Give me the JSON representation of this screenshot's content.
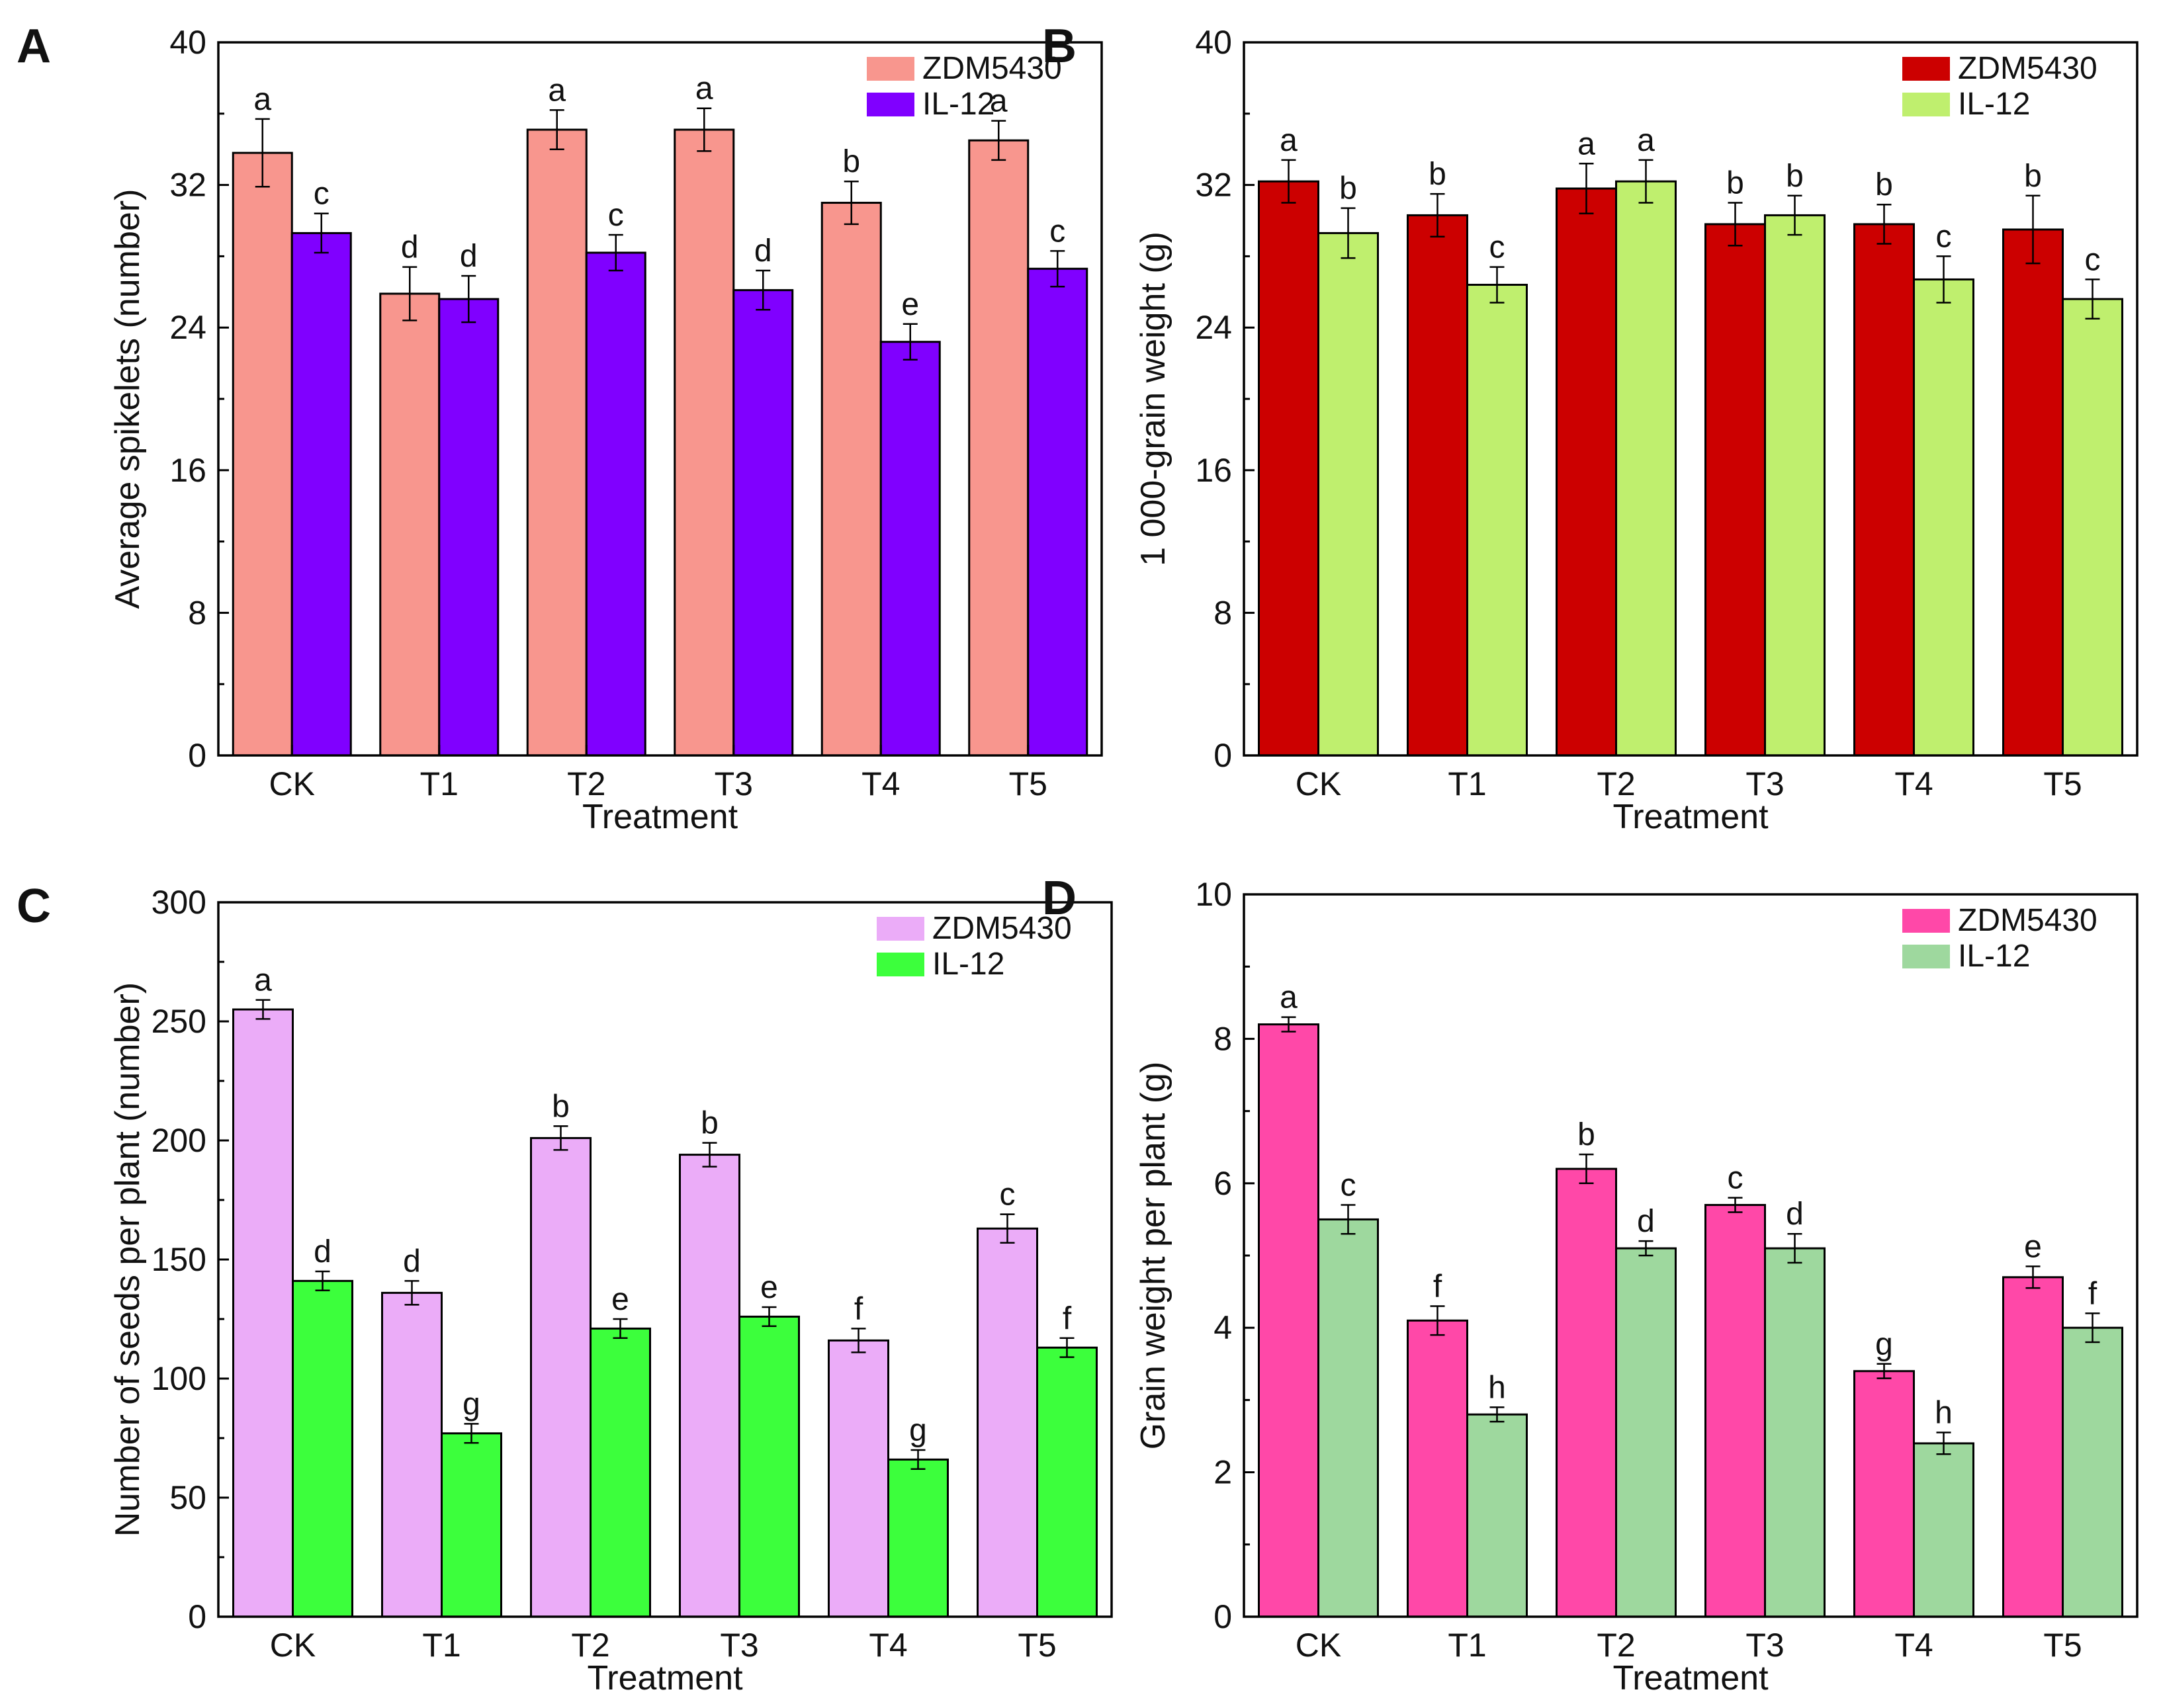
{
  "chart_data": [
    {
      "panel": "A",
      "type": "bar",
      "title": "",
      "xlabel": "Treatment",
      "ylabel": "Average spikelets (number)",
      "ylim": [
        0,
        40
      ],
      "yticks": [
        0,
        8,
        16,
        24,
        32,
        40
      ],
      "categories": [
        "CK",
        "T1",
        "T2",
        "T3",
        "T4",
        "T5"
      ],
      "legend_position": "top-right",
      "series": [
        {
          "name": "ZDM5430",
          "color": "#F8968E",
          "values": [
            33.8,
            25.9,
            35.1,
            35.1,
            31.0,
            34.5
          ],
          "errors": [
            1.9,
            1.5,
            1.1,
            1.2,
            1.2,
            1.1
          ],
          "labels": [
            "a",
            "d",
            "a",
            "a",
            "b",
            "a"
          ]
        },
        {
          "name": "IL-12",
          "color": "#8000FF",
          "values": [
            29.3,
            25.6,
            28.2,
            26.1,
            23.2,
            27.3
          ],
          "errors": [
            1.1,
            1.3,
            1.0,
            1.1,
            1.0,
            1.0
          ],
          "labels": [
            "c",
            "d",
            "c",
            "d",
            "e",
            "c"
          ]
        }
      ]
    },
    {
      "panel": "B",
      "type": "bar",
      "title": "",
      "xlabel": "Treatment",
      "ylabel": "1 000-grain weight (g)",
      "ylim": [
        0,
        40
      ],
      "yticks": [
        0,
        8,
        16,
        24,
        32,
        40
      ],
      "categories": [
        "CK",
        "T1",
        "T2",
        "T3",
        "T4",
        "T5"
      ],
      "legend_position": "top-right",
      "series": [
        {
          "name": "ZDM5430",
          "color": "#CC0000",
          "values": [
            32.2,
            30.3,
            31.8,
            29.8,
            29.8,
            29.5
          ],
          "errors": [
            1.2,
            1.2,
            1.4,
            1.2,
            1.1,
            1.9
          ],
          "labels": [
            "a",
            "b",
            "a",
            "b",
            "b",
            "b"
          ]
        },
        {
          "name": "IL-12",
          "color": "#BFEF6E",
          "values": [
            29.3,
            26.4,
            32.2,
            30.3,
            26.7,
            25.6
          ],
          "errors": [
            1.4,
            1.0,
            1.2,
            1.1,
            1.3,
            1.1
          ],
          "labels": [
            "b",
            "c",
            "a",
            "b",
            "c",
            "c"
          ]
        }
      ]
    },
    {
      "panel": "C",
      "type": "bar",
      "title": "",
      "xlabel": "Treatment",
      "ylabel": "Number of seeds per plant (number)",
      "ylim": [
        0,
        300
      ],
      "yticks": [
        0,
        50,
        100,
        150,
        200,
        250,
        300
      ],
      "categories": [
        "CK",
        "T1",
        "T2",
        "T3",
        "T4",
        "T5"
      ],
      "legend_position": "top-right",
      "series": [
        {
          "name": "ZDM5430",
          "color": "#EBACF8",
          "values": [
            255,
            136,
            201,
            194,
            116,
            163
          ],
          "errors": [
            4,
            5,
            5,
            5,
            5,
            6
          ],
          "labels": [
            "a",
            "d",
            "b",
            "b",
            "f",
            "c"
          ]
        },
        {
          "name": "IL-12",
          "color": "#3CFF3C",
          "values": [
            141,
            77,
            121,
            126,
            66,
            113
          ],
          "errors": [
            4,
            4,
            4,
            4,
            4,
            4
          ],
          "labels": [
            "d",
            "g",
            "e",
            "e",
            "g",
            "f"
          ]
        }
      ]
    },
    {
      "panel": "D",
      "type": "bar",
      "title": "",
      "xlabel": "Treatment",
      "ylabel": "Grain weight per plant (g)",
      "ylim": [
        0,
        10
      ],
      "yticks": [
        0,
        2,
        4,
        6,
        8,
        10
      ],
      "categories": [
        "CK",
        "T1",
        "T2",
        "T3",
        "T4",
        "T5"
      ],
      "legend_position": "top-right",
      "series": [
        {
          "name": "ZDM5430",
          "color": "#FF48A8",
          "values": [
            8.2,
            4.1,
            6.2,
            5.7,
            3.4,
            4.7
          ],
          "errors": [
            0.1,
            0.2,
            0.2,
            0.1,
            0.1,
            0.15
          ],
          "labels": [
            "a",
            "f",
            "b",
            "c",
            "g",
            "e"
          ]
        },
        {
          "name": "IL-12",
          "color": "#9ED89E",
          "values": [
            5.5,
            2.8,
            5.1,
            5.1,
            2.4,
            4.0
          ],
          "errors": [
            0.2,
            0.1,
            0.1,
            0.2,
            0.15,
            0.2
          ],
          "labels": [
            "c",
            "h",
            "d",
            "d",
            "h",
            "f"
          ]
        }
      ]
    }
  ]
}
